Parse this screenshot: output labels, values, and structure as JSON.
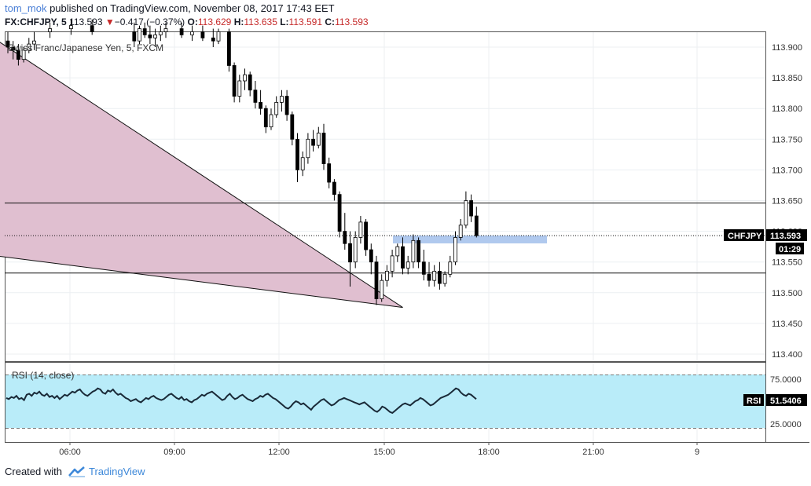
{
  "header": {
    "user": "tom_mok",
    "published": " published on TradingView.com, November 08, 2017 17:43 EET"
  },
  "quote": {
    "symbol": "FX:CHFJPY, 5",
    "last": "113.593",
    "change_arrow": "▼",
    "change": "−0.417 (−0.37%)",
    "o_label": "O:",
    "o": "113.629",
    "h_label": "H:",
    "h": "113.635",
    "l_label": "L:",
    "l": "113.591",
    "c_label": "C:",
    "c": "113.593"
  },
  "chart_title": "Swiss Franc/Japanese Yen, 5, FXCM",
  "price_axis": [
    "113.900",
    "113.850",
    "113.800",
    "113.750",
    "113.700",
    "113.650",
    "113.600",
    "113.550",
    "113.500",
    "113.450",
    "113.400"
  ],
  "time_axis": [
    "06:00",
    "09:00",
    "12:00",
    "15:00",
    "18:00",
    "21:00",
    "9"
  ],
  "price_tag": {
    "label": "CHFJPY",
    "value": "113.593",
    "countdown": "01:29"
  },
  "rsi": {
    "title": "RSI (14, close)",
    "axis": [
      "75.0000",
      "25.0000"
    ],
    "tag_label": "RSI",
    "tag_value": "51.5406"
  },
  "colors": {
    "candle": "#000000",
    "triangle_fill": "#e0bfd0",
    "highlight_box": "#b0c9ee",
    "rsi_band": "#b9ecf9",
    "price_tag": "#000000",
    "down": "#c62828",
    "brand": "#3d88d9"
  },
  "horizontal_levels": [
    113.646,
    113.532
  ],
  "current_price": 113.593,
  "candles": [
    [
      0,
      113.91,
      113.925,
      113.89,
      113.9
    ],
    [
      1,
      113.9,
      113.91,
      113.88,
      113.895
    ],
    [
      2,
      113.895,
      113.905,
      113.87,
      113.88
    ],
    [
      3,
      113.88,
      113.9,
      113.875,
      113.895
    ],
    [
      4,
      113.895,
      113.915,
      113.89,
      113.905
    ],
    [
      5,
      113.905,
      113.925,
      113.895,
      113.91
    ],
    [
      8,
      113.925,
      113.94,
      113.915,
      113.93
    ],
    [
      12,
      113.93,
      113.945,
      113.92,
      113.935
    ],
    [
      16,
      113.935,
      113.945,
      113.92,
      113.925
    ],
    [
      24,
      113.925,
      113.94,
      113.9,
      113.91
    ],
    [
      25,
      113.91,
      113.935,
      113.905,
      113.93
    ],
    [
      26,
      113.93,
      113.94,
      113.915,
      113.92
    ],
    [
      27,
      113.92,
      113.935,
      113.905,
      113.915
    ],
    [
      28,
      113.915,
      113.93,
      113.9,
      113.92
    ],
    [
      29,
      113.92,
      113.935,
      113.91,
      113.925
    ],
    [
      30,
      113.925,
      113.94,
      113.915,
      113.93
    ],
    [
      33,
      113.93,
      113.94,
      113.915,
      113.92
    ],
    [
      35,
      113.92,
      113.935,
      113.91,
      113.925
    ],
    [
      37,
      113.925,
      113.935,
      113.91,
      113.915
    ],
    [
      39,
      113.915,
      113.93,
      113.9,
      113.91
    ],
    [
      40,
      113.91,
      113.93,
      113.905,
      113.925
    ],
    [
      42,
      113.925,
      113.93,
      113.86,
      113.87
    ],
    [
      43,
      113.87,
      113.875,
      113.81,
      113.82
    ],
    [
      44,
      113.82,
      113.855,
      113.81,
      113.845
    ],
    [
      45,
      113.845,
      113.865,
      113.83,
      113.855
    ],
    [
      46,
      113.855,
      113.86,
      113.82,
      113.83
    ],
    [
      47,
      113.83,
      113.845,
      113.8,
      113.81
    ],
    [
      48,
      113.81,
      113.83,
      113.79,
      113.8
    ],
    [
      49,
      113.8,
      113.805,
      113.76,
      113.77
    ],
    [
      50,
      113.77,
      113.8,
      113.765,
      113.79
    ],
    [
      51,
      113.79,
      113.82,
      113.785,
      113.81
    ],
    [
      52,
      113.81,
      113.83,
      113.795,
      113.82
    ],
    [
      53,
      113.82,
      113.83,
      113.78,
      113.79
    ],
    [
      54,
      113.79,
      113.795,
      113.74,
      113.75
    ],
    [
      55,
      113.75,
      113.76,
      113.68,
      113.7
    ],
    [
      56,
      113.7,
      113.73,
      113.69,
      113.72
    ],
    [
      57,
      113.72,
      113.76,
      113.71,
      113.75
    ],
    [
      58,
      113.75,
      113.765,
      113.73,
      113.74
    ],
    [
      59,
      113.74,
      113.77,
      113.735,
      113.76
    ],
    [
      60,
      113.76,
      113.775,
      113.7,
      113.71
    ],
    [
      61,
      113.71,
      113.72,
      113.67,
      113.68
    ],
    [
      62,
      113.68,
      113.685,
      113.65,
      113.66
    ],
    [
      63,
      113.66,
      113.665,
      113.59,
      113.6
    ],
    [
      64,
      113.6,
      113.63,
      113.57,
      113.58
    ],
    [
      65,
      113.58,
      113.6,
      113.51,
      113.55
    ],
    [
      66,
      113.55,
      113.6,
      113.54,
      113.59
    ],
    [
      67,
      113.59,
      113.625,
      113.58,
      113.615
    ],
    [
      68,
      113.615,
      113.62,
      113.56,
      113.57
    ],
    [
      69,
      113.57,
      113.58,
      113.53,
      113.55
    ],
    [
      70,
      113.55,
      113.56,
      113.48,
      113.49
    ],
    [
      71,
      113.49,
      113.53,
      113.485,
      113.52
    ],
    [
      72,
      113.52,
      113.545,
      113.51,
      113.535
    ],
    [
      73,
      113.535,
      113.57,
      113.525,
      113.56
    ],
    [
      74,
      113.56,
      113.58,
      113.55,
      113.575
    ],
    [
      75,
      113.575,
      113.59,
      113.53,
      113.54
    ],
    [
      76,
      113.54,
      113.56,
      113.53,
      113.55
    ],
    [
      77,
      113.55,
      113.595,
      113.54,
      113.585
    ],
    [
      78,
      113.585,
      113.59,
      113.54,
      113.55
    ],
    [
      79,
      113.55,
      113.57,
      113.52,
      113.53
    ],
    [
      80,
      113.53,
      113.55,
      113.51,
      113.52
    ],
    [
      81,
      113.52,
      113.545,
      113.51,
      113.535
    ],
    [
      82,
      113.535,
      113.55,
      113.505,
      113.515
    ],
    [
      83,
      113.515,
      113.535,
      113.51,
      113.53
    ],
    [
      84,
      113.53,
      113.56,
      113.525,
      113.55
    ],
    [
      85,
      113.55,
      113.6,
      113.545,
      113.59
    ],
    [
      86,
      113.59,
      113.62,
      113.585,
      113.61
    ],
    [
      87,
      113.61,
      113.665,
      113.605,
      113.65
    ],
    [
      88,
      113.65,
      113.66,
      113.615,
      113.625
    ],
    [
      89,
      113.625,
      113.64,
      113.59,
      113.593
    ]
  ],
  "rsi_series": [
    53,
    52,
    54,
    53,
    55,
    52,
    53,
    51,
    56,
    57,
    55,
    58,
    57,
    59,
    56,
    55,
    57,
    54,
    55,
    53,
    55,
    52,
    54,
    56,
    55,
    57,
    59,
    58,
    60,
    61,
    58,
    56,
    55,
    57,
    59,
    60,
    62,
    61,
    58,
    57,
    60,
    59,
    61,
    58,
    56,
    57,
    55,
    53,
    52,
    50,
    51,
    52,
    50,
    49,
    51,
    53,
    52,
    54,
    55,
    53,
    52,
    51,
    52,
    54,
    56,
    57,
    55,
    53,
    52,
    54,
    51,
    52,
    50,
    49,
    51,
    52,
    54,
    56,
    55,
    57,
    58,
    59,
    57,
    55,
    53,
    51,
    52,
    55,
    57,
    54,
    52,
    53,
    55,
    56,
    54,
    52,
    51,
    50,
    52,
    53,
    55,
    54,
    56,
    57,
    55,
    53,
    52,
    50,
    48,
    46,
    44,
    43,
    45,
    48,
    50,
    49,
    47,
    48,
    46,
    44,
    42,
    45,
    47,
    49,
    51,
    52,
    50,
    48,
    46,
    47,
    49,
    51,
    52,
    53,
    52,
    51,
    50,
    49,
    48,
    47,
    48,
    49,
    47,
    45,
    43,
    41,
    40,
    42,
    45,
    44,
    42,
    40,
    39,
    41,
    43,
    45,
    47,
    48,
    47,
    46,
    48,
    50,
    51,
    53,
    52,
    50,
    48,
    46,
    47,
    49,
    51,
    53,
    54,
    55,
    56,
    58,
    60,
    62,
    61,
    58,
    56,
    55,
    57,
    56,
    54,
    52
  ],
  "trend_triangle": {
    "a": [
      -4,
      113.922
    ],
    "b": [
      75,
      113.476
    ],
    "c": [
      -4,
      113.562
    ]
  }
}
